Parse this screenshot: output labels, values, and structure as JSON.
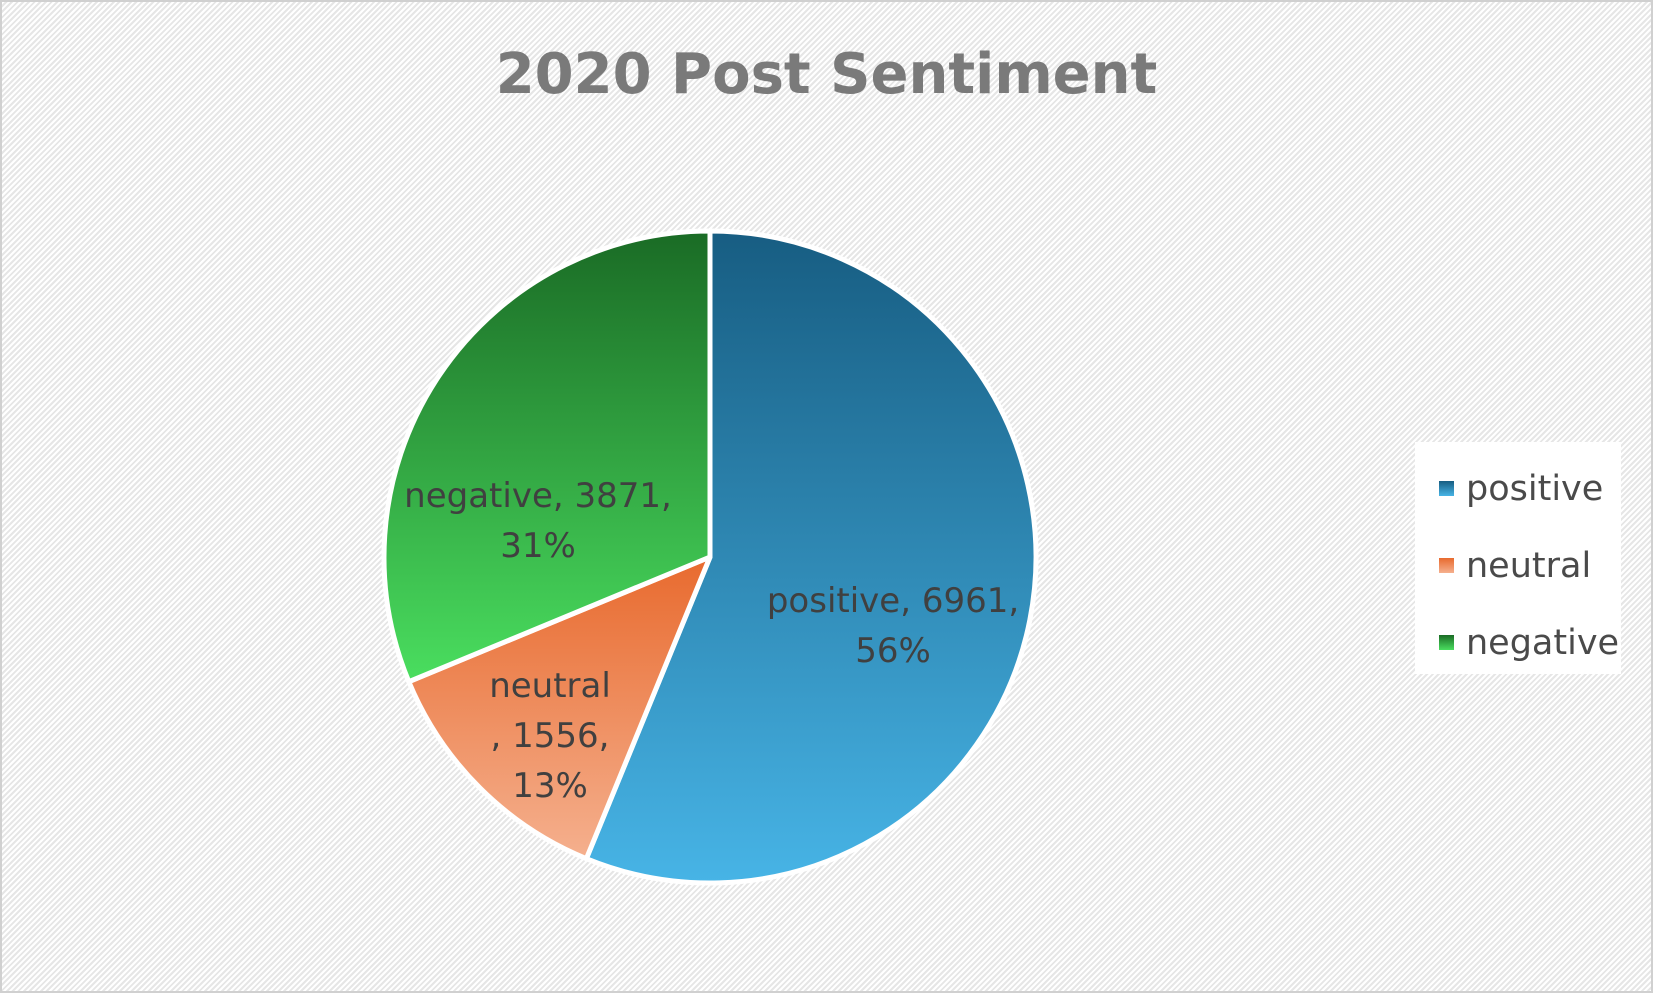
{
  "chart_data": {
    "type": "pie",
    "title": "2020 Post Sentiment",
    "slices": [
      {
        "label": "positive",
        "value": 6961,
        "percent": "56%",
        "color_top": "#175d82",
        "color_bottom": "#47b4e6",
        "data_label": [
          "positive, 6961,",
          "56%"
        ]
      },
      {
        "label": "neutral",
        "value": 1556,
        "percent": "13%",
        "color_top": "#e86a2e",
        "color_bottom": "#f5b08e",
        "data_label": [
          "neutral",
          ", 1556,",
          "13%"
        ]
      },
      {
        "label": "negative",
        "value": 3871,
        "percent": "31%",
        "color_top": "#1a6b25",
        "color_bottom": "#4ade5f",
        "data_label": [
          "negative, 3871,",
          "31%"
        ]
      }
    ],
    "legend": {
      "placement": "right",
      "items": [
        {
          "label": "positive",
          "color_top": "#175d82",
          "color_bottom": "#47b4e6"
        },
        {
          "label": "neutral",
          "color_top": "#e86a2e",
          "color_bottom": "#f5b08e"
        },
        {
          "label": "negative",
          "color_top": "#1a6b25",
          "color_bottom": "#4ade5f"
        }
      ]
    }
  }
}
